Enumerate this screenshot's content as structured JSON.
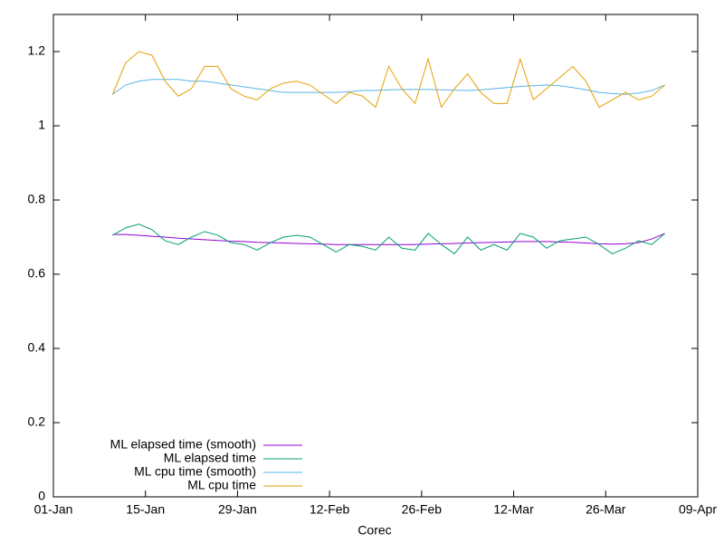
{
  "chart_data": {
    "type": "line",
    "xlabel": "Corec",
    "x": [
      9,
      11,
      13,
      15,
      17,
      19,
      21,
      23,
      25,
      27,
      29,
      31,
      33,
      35,
      37,
      39,
      41,
      43,
      45,
      47,
      49,
      51,
      53,
      55,
      57,
      59,
      61,
      63,
      65,
      67,
      69,
      71,
      73,
      75,
      77,
      79,
      81,
      83,
      85,
      87,
      89,
      91,
      93
    ],
    "xlim": [
      0,
      98
    ],
    "xticks": [
      {
        "value": 0,
        "label": "01-Jan"
      },
      {
        "value": 14,
        "label": "15-Jan"
      },
      {
        "value": 28,
        "label": "29-Jan"
      },
      {
        "value": 42,
        "label": "12-Feb"
      },
      {
        "value": 56,
        "label": "26-Feb"
      },
      {
        "value": 70,
        "label": "12-Mar"
      },
      {
        "value": 84,
        "label": "26-Mar"
      },
      {
        "value": 98,
        "label": "09-Apr"
      }
    ],
    "ylim": [
      0,
      1.3
    ],
    "yticks": [
      0,
      0.2,
      0.4,
      0.6,
      0.8,
      1,
      1.2
    ],
    "legend": "bottom-left",
    "series": [
      {
        "name": "ML elapsed time (smooth)",
        "color": "#9400d3",
        "values": [
          0.707,
          0.707,
          0.705,
          0.702,
          0.7,
          0.697,
          0.695,
          0.693,
          0.691,
          0.689,
          0.688,
          0.686,
          0.685,
          0.684,
          0.683,
          0.682,
          0.681,
          0.68,
          0.68,
          0.68,
          0.68,
          0.68,
          0.68,
          0.68,
          0.681,
          0.682,
          0.683,
          0.684,
          0.685,
          0.686,
          0.687,
          0.688,
          0.688,
          0.688,
          0.687,
          0.686,
          0.684,
          0.682,
          0.681,
          0.682,
          0.685,
          0.695,
          0.71
        ]
      },
      {
        "name": "ML elapsed time",
        "color": "#009e73",
        "values": [
          0.705,
          0.725,
          0.735,
          0.72,
          0.69,
          0.68,
          0.7,
          0.715,
          0.705,
          0.685,
          0.68,
          0.665,
          0.685,
          0.7,
          0.705,
          0.7,
          0.68,
          0.66,
          0.68,
          0.675,
          0.665,
          0.7,
          0.67,
          0.665,
          0.71,
          0.68,
          0.655,
          0.7,
          0.665,
          0.68,
          0.665,
          0.71,
          0.7,
          0.67,
          0.69,
          0.695,
          0.7,
          0.68,
          0.655,
          0.67,
          0.69,
          0.68,
          0.71
        ]
      },
      {
        "name": "ML cpu time (smooth)",
        "color": "#56b4e9",
        "values": [
          1.085,
          1.11,
          1.12,
          1.125,
          1.125,
          1.125,
          1.12,
          1.12,
          1.115,
          1.11,
          1.105,
          1.1,
          1.095,
          1.09,
          1.09,
          1.09,
          1.09,
          1.09,
          1.092,
          1.095,
          1.095,
          1.097,
          1.098,
          1.098,
          1.098,
          1.097,
          1.096,
          1.095,
          1.097,
          1.1,
          1.103,
          1.106,
          1.108,
          1.11,
          1.108,
          1.103,
          1.097,
          1.09,
          1.087,
          1.085,
          1.088,
          1.095,
          1.11
        ]
      },
      {
        "name": "ML cpu time",
        "color": "#e69f00",
        "values": [
          1.085,
          1.17,
          1.2,
          1.19,
          1.12,
          1.08,
          1.1,
          1.16,
          1.16,
          1.1,
          1.08,
          1.07,
          1.1,
          1.115,
          1.12,
          1.11,
          1.085,
          1.06,
          1.09,
          1.08,
          1.05,
          1.16,
          1.1,
          1.06,
          1.18,
          1.05,
          1.1,
          1.14,
          1.09,
          1.06,
          1.06,
          1.18,
          1.07,
          1.1,
          1.13,
          1.16,
          1.12,
          1.05,
          1.07,
          1.09,
          1.07,
          1.08,
          1.11
        ]
      }
    ]
  }
}
